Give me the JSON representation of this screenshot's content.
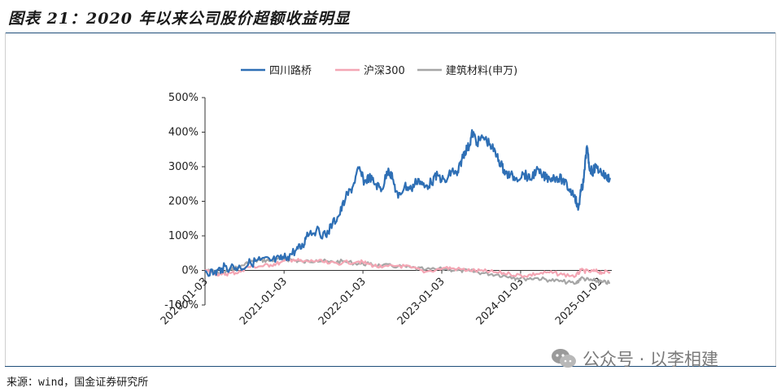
{
  "title": "图表 21：2020 年以来公司股价超额收益明显",
  "source": "来源：wind，国金证券研究所",
  "watermark": "公众号 · 以李相建",
  "chart_data": {
    "type": "line",
    "title": "",
    "xlabel": "",
    "ylabel": "",
    "ylim": [
      -100,
      500
    ],
    "yticks": [
      "500%",
      "400%",
      "300%",
      "200%",
      "100%",
      "0%",
      "-100%"
    ],
    "ytick_values": [
      500,
      400,
      300,
      200,
      100,
      0,
      -100
    ],
    "xticks": [
      "2020-01-03",
      "2021-01-03",
      "2022-01-03",
      "2023-01-03",
      "2024-01-03",
      "2025-01-03"
    ],
    "xlim": [
      "2020-01-03",
      "2025-02-28"
    ],
    "legend_position": "top",
    "grid": false,
    "series": [
      {
        "name": "四川路桥",
        "color": "#2e6fb5",
        "points": [
          [
            "2020-01-03",
            0
          ],
          [
            "2020-02-15",
            -8
          ],
          [
            "2020-03-20",
            6
          ],
          [
            "2020-05-01",
            10
          ],
          [
            "2020-06-15",
            8
          ],
          [
            "2020-08-01",
            22
          ],
          [
            "2020-09-15",
            30
          ],
          [
            "2020-11-01",
            28
          ],
          [
            "2020-12-15",
            32
          ],
          [
            "2021-01-20",
            40
          ],
          [
            "2021-03-01",
            60
          ],
          [
            "2021-04-01",
            70
          ],
          [
            "2021-04-20",
            110
          ],
          [
            "2021-06-01",
            115
          ],
          [
            "2021-07-15",
            100
          ],
          [
            "2021-08-15",
            135
          ],
          [
            "2021-09-15",
            160
          ],
          [
            "2021-10-15",
            210
          ],
          [
            "2021-11-15",
            240
          ],
          [
            "2021-12-15",
            295
          ],
          [
            "2022-01-10",
            255
          ],
          [
            "2022-02-01",
            270
          ],
          [
            "2022-03-01",
            250
          ],
          [
            "2022-04-01",
            235
          ],
          [
            "2022-05-01",
            295
          ],
          [
            "2022-05-20",
            265
          ],
          [
            "2022-06-15",
            210
          ],
          [
            "2022-07-15",
            245
          ],
          [
            "2022-08-15",
            235
          ],
          [
            "2022-09-15",
            265
          ],
          [
            "2022-10-15",
            240
          ],
          [
            "2022-11-15",
            255
          ],
          [
            "2022-12-15",
            275
          ],
          [
            "2023-01-20",
            255
          ],
          [
            "2023-02-20",
            290
          ],
          [
            "2023-03-15",
            275
          ],
          [
            "2023-04-05",
            320
          ],
          [
            "2023-04-20",
            345
          ],
          [
            "2023-05-10",
            360
          ],
          [
            "2023-05-25",
            400
          ],
          [
            "2023-06-15",
            370
          ],
          [
            "2023-07-15",
            385
          ],
          [
            "2023-08-15",
            365
          ],
          [
            "2023-09-15",
            330
          ],
          [
            "2023-10-10",
            300
          ],
          [
            "2023-10-25",
            280
          ],
          [
            "2023-11-15",
            275
          ],
          [
            "2023-12-15",
            268
          ],
          [
            "2024-01-20",
            280
          ],
          [
            "2024-02-15",
            262
          ],
          [
            "2024-03-15",
            290
          ],
          [
            "2024-04-15",
            272
          ],
          [
            "2024-05-15",
            268
          ],
          [
            "2024-06-15",
            270
          ],
          [
            "2024-07-15",
            262
          ],
          [
            "2024-08-15",
            235
          ],
          [
            "2024-09-10",
            218
          ],
          [
            "2024-09-25",
            175
          ],
          [
            "2024-10-08",
            228
          ],
          [
            "2024-10-20",
            255
          ],
          [
            "2024-11-05",
            360
          ],
          [
            "2024-11-15",
            300
          ],
          [
            "2024-12-01",
            285
          ],
          [
            "2024-12-15",
            300
          ],
          [
            "2025-01-10",
            285
          ],
          [
            "2025-02-01",
            270
          ],
          [
            "2025-02-20",
            268
          ]
        ]
      },
      {
        "name": "沪深300",
        "color": "#f4a6b4",
        "points": [
          [
            "2020-01-03",
            0
          ],
          [
            "2020-02-15",
            -8
          ],
          [
            "2020-03-20",
            -12
          ],
          [
            "2020-05-01",
            -8
          ],
          [
            "2020-06-15",
            -4
          ],
          [
            "2020-07-15",
            10
          ],
          [
            "2020-09-15",
            12
          ],
          [
            "2020-11-01",
            16
          ],
          [
            "2020-12-15",
            22
          ],
          [
            "2021-02-15",
            32
          ],
          [
            "2021-04-01",
            25
          ],
          [
            "2021-06-01",
            28
          ],
          [
            "2021-08-01",
            20
          ],
          [
            "2021-10-01",
            22
          ],
          [
            "2021-12-15",
            26
          ],
          [
            "2022-02-01",
            18
          ],
          [
            "2022-04-01",
            8
          ],
          [
            "2022-06-15",
            14
          ],
          [
            "2022-08-15",
            8
          ],
          [
            "2022-10-20",
            -4
          ],
          [
            "2023-01-20",
            8
          ],
          [
            "2023-03-15",
            4
          ],
          [
            "2023-05-15",
            0
          ],
          [
            "2023-07-15",
            -2
          ],
          [
            "2023-09-15",
            -6
          ],
          [
            "2023-11-15",
            -10
          ],
          [
            "2024-01-20",
            -16
          ],
          [
            "2024-03-15",
            -10
          ],
          [
            "2024-05-15",
            -6
          ],
          [
            "2024-07-15",
            -12
          ],
          [
            "2024-09-15",
            -16
          ],
          [
            "2024-10-08",
            0
          ],
          [
            "2024-11-15",
            -4
          ],
          [
            "2024-12-15",
            -2
          ],
          [
            "2025-01-15",
            -6
          ],
          [
            "2025-02-20",
            -4
          ]
        ]
      },
      {
        "name": "建筑材料(申万)",
        "color": "#a6a6a6",
        "points": [
          [
            "2020-01-03",
            0
          ],
          [
            "2020-02-15",
            -5
          ],
          [
            "2020-03-20",
            -10
          ],
          [
            "2020-05-01",
            2
          ],
          [
            "2020-06-15",
            12
          ],
          [
            "2020-08-01",
            25
          ],
          [
            "2020-09-15",
            30
          ],
          [
            "2020-11-01",
            28
          ],
          [
            "2020-12-15",
            34
          ],
          [
            "2021-02-15",
            30
          ],
          [
            "2021-04-01",
            24
          ],
          [
            "2021-06-01",
            30
          ],
          [
            "2021-08-01",
            24
          ],
          [
            "2021-10-01",
            26
          ],
          [
            "2021-12-15",
            20
          ],
          [
            "2022-02-01",
            18
          ],
          [
            "2022-04-01",
            14
          ],
          [
            "2022-06-15",
            12
          ],
          [
            "2022-08-15",
            8
          ],
          [
            "2022-10-20",
            2
          ],
          [
            "2023-01-20",
            4
          ],
          [
            "2023-03-15",
            0
          ],
          [
            "2023-05-15",
            -2
          ],
          [
            "2023-07-15",
            -8
          ],
          [
            "2023-09-15",
            -12
          ],
          [
            "2023-11-15",
            -18
          ],
          [
            "2024-01-20",
            -24
          ],
          [
            "2024-03-15",
            -22
          ],
          [
            "2024-05-15",
            -28
          ],
          [
            "2024-07-15",
            -32
          ],
          [
            "2024-09-15",
            -38
          ],
          [
            "2024-10-08",
            -22
          ],
          [
            "2024-11-15",
            -28
          ],
          [
            "2024-12-15",
            -30
          ],
          [
            "2025-01-15",
            -34
          ],
          [
            "2025-02-20",
            -36
          ]
        ]
      }
    ]
  }
}
